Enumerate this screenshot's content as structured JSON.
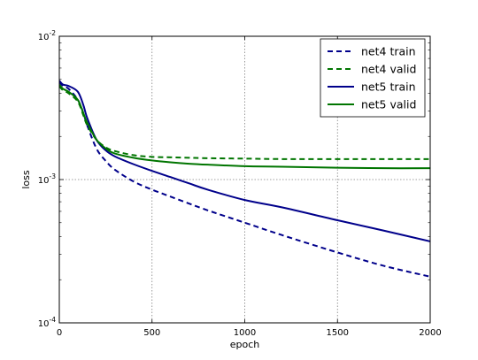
{
  "chart_data": {
    "type": "line",
    "title": "",
    "xlabel": "epoch",
    "ylabel": "loss",
    "xlim": [
      0,
      2000
    ],
    "ylim": [
      0.0001,
      0.01
    ],
    "y_scale": "log",
    "grid": true,
    "legend_placement": "top-right",
    "x_ticks": [
      0,
      500,
      1000,
      1500,
      2000
    ],
    "x_tick_labels": [
      "0",
      "500",
      "1000",
      "1500",
      "2000"
    ],
    "y_ticks": [
      0.0001,
      0.001,
      0.01
    ],
    "y_tick_labels": [
      {
        "base": "10",
        "exp": "-4"
      },
      {
        "base": "10",
        "exp": "-3"
      },
      {
        "base": "10",
        "exp": "-2"
      }
    ],
    "x": [
      0,
      20,
      50,
      100,
      130,
      150,
      200,
      250,
      300,
      400,
      500,
      600,
      700,
      800,
      1000,
      1200,
      1500,
      1750,
      2000
    ],
    "series": [
      {
        "name": "net4 train",
        "color": "#00008b",
        "style": "dashed",
        "values": [
          0.0048,
          0.0045,
          0.0043,
          0.0036,
          0.0029,
          0.0024,
          0.00165,
          0.00135,
          0.00117,
          0.00097,
          0.00085,
          0.00076,
          0.00068,
          0.00061,
          0.0005,
          0.00041,
          0.00031,
          0.00025,
          0.00021
        ]
      },
      {
        "name": "net4 valid",
        "color": "#007500",
        "style": "dashed",
        "values": [
          0.0045,
          0.0042,
          0.004,
          0.0035,
          0.0028,
          0.0024,
          0.0019,
          0.00168,
          0.00158,
          0.00148,
          0.00144,
          0.00143,
          0.00142,
          0.00141,
          0.0014,
          0.00139,
          0.00139,
          0.00139,
          0.00139
        ]
      },
      {
        "name": "net5 train",
        "color": "#00008b",
        "style": "solid",
        "values": [
          0.0049,
          0.0046,
          0.0045,
          0.0041,
          0.0033,
          0.0027,
          0.0019,
          0.0016,
          0.00145,
          0.00128,
          0.00115,
          0.00104,
          0.00094,
          0.00085,
          0.00072,
          0.00064,
          0.00052,
          0.00044,
          0.00037
        ]
      },
      {
        "name": "net5 valid",
        "color": "#007500",
        "style": "solid",
        "values": [
          0.0046,
          0.0043,
          0.0041,
          0.0036,
          0.0029,
          0.0025,
          0.0019,
          0.00165,
          0.00152,
          0.00142,
          0.00136,
          0.00132,
          0.00129,
          0.00127,
          0.00124,
          0.00123,
          0.00121,
          0.0012,
          0.0012
        ]
      }
    ]
  }
}
